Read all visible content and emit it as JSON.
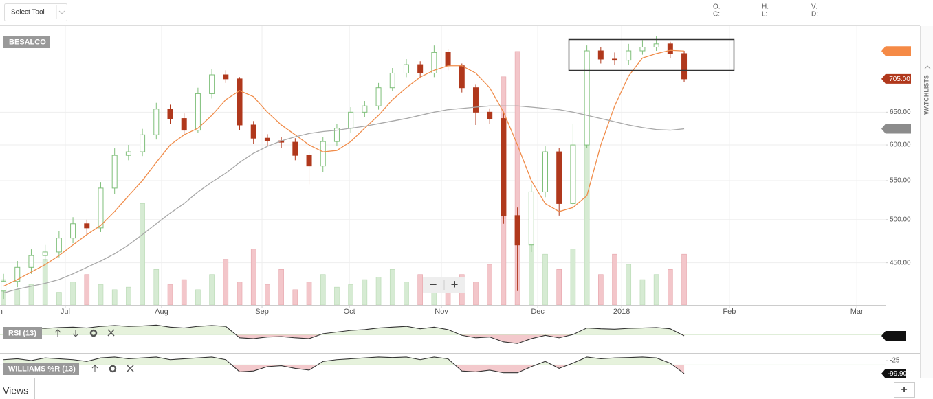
{
  "toolbar": {
    "select_tool": "Select Tool",
    "ohlc_labels": [
      "O:",
      "H:",
      "V:",
      "C:",
      "L:",
      "D:"
    ]
  },
  "sidebar": {
    "watchlists": "WATCHLISTS"
  },
  "footer": {
    "views": "Views",
    "add": "+"
  },
  "zoom": {
    "out": "−",
    "in": "+"
  },
  "chart_data": [
    {
      "type": "candlestick",
      "title": "BESALCO",
      "scale": "log",
      "grid": true,
      "ylim": [
        406,
        802
      ],
      "yticks": [
        {
          "value": 450,
          "label": "450.00"
        },
        {
          "value": 500,
          "label": "500.00"
        },
        {
          "value": 550,
          "label": "550.00"
        },
        {
          "value": 600,
          "label": "600.00"
        },
        {
          "value": 650,
          "label": "650.00"
        }
      ],
      "xlim": [
        -0.25,
        63.5
      ],
      "xticks": [
        {
          "value": -0.5,
          "label": "Jun"
        },
        {
          "value": 4.45,
          "label": "Jul"
        },
        {
          "value": 11.38,
          "label": "Aug"
        },
        {
          "value": 18.61,
          "label": "Sep"
        },
        {
          "value": 24.9,
          "label": "Oct"
        },
        {
          "value": 31.53,
          "label": "Nov"
        },
        {
          "value": 38.46,
          "label": "Dec"
        },
        {
          "value": 44.5,
          "label": "2018"
        },
        {
          "value": 52.26,
          "label": "Feb"
        },
        {
          "value": 61.43,
          "label": "Mar"
        }
      ],
      "open": [
        420,
        430,
        445,
        458,
        462,
        478,
        495,
        490,
        540,
        585,
        590,
        615,
        655,
        640,
        622,
        680,
        712,
        705,
        630,
        610,
        606,
        604,
        585,
        570,
        605,
        625,
        650,
        660,
        690,
        715,
        730,
        715,
        752,
        728,
        690,
        650,
        640,
        505,
        470,
        535,
        590,
        520,
        600,
        755,
        740,
        738,
        755,
        762,
        768,
        750
      ],
      "high": [
        438,
        452,
        465,
        470,
        486,
        503,
        500,
        548,
        595,
        600,
        624,
        665,
        662,
        648,
        690,
        722,
        720,
        708,
        636,
        616,
        612,
        610,
        590,
        612,
        632,
        658,
        668,
        698,
        724,
        740,
        736,
        765,
        758,
        732,
        695,
        656,
        648,
        515,
        545,
        598,
        596,
        632,
        765,
        762,
        752,
        768,
        775,
        782,
        772,
        755
      ],
      "low": [
        412,
        424,
        438,
        452,
        456,
        472,
        482,
        485,
        532,
        578,
        584,
        608,
        632,
        615,
        618,
        672,
        698,
        622,
        602,
        598,
        596,
        578,
        545,
        562,
        598,
        618,
        642,
        654,
        684,
        708,
        706,
        708,
        720,
        682,
        630,
        632,
        495,
        420,
        462,
        528,
        505,
        512,
        595,
        732,
        730,
        730,
        748,
        755,
        742,
        700
      ],
      "close": [
        430,
        445,
        458,
        462,
        478,
        495,
        490,
        540,
        585,
        590,
        615,
        655,
        640,
        622,
        680,
        712,
        705,
        630,
        610,
        606,
        604,
        585,
        570,
        605,
        625,
        650,
        660,
        690,
        715,
        730,
        715,
        752,
        728,
        690,
        650,
        640,
        505,
        470,
        535,
        590,
        520,
        600,
        755,
        740,
        738,
        755,
        762,
        768,
        750,
        705
      ],
      "up_color": "#7fbf7a",
      "down_color": "#b0381c",
      "volume": {
        "ylim": [
          0,
          110
        ],
        "up_color": "#d6ebd3",
        "down_color": "#f3c6ca",
        "values": [
          10,
          6,
          8,
          18,
          5,
          9,
          12,
          8,
          6,
          7,
          40,
          14,
          8,
          10,
          6,
          12,
          18,
          9,
          22,
          8,
          14,
          6,
          9,
          12,
          7,
          8,
          10,
          11,
          14,
          9,
          12,
          8,
          10,
          12,
          9,
          16,
          90,
          100,
          30,
          20,
          14,
          22,
          100,
          12,
          20,
          16,
          10,
          12,
          14,
          20
        ]
      },
      "series": [
        {
          "color": "#f08c4a",
          "values": [
            425,
            432,
            440,
            448,
            458,
            470,
            482,
            493,
            510,
            530,
            550,
            575,
            600,
            615,
            625,
            645,
            670,
            685,
            675,
            650,
            630,
            615,
            600,
            590,
            592,
            605,
            625,
            645,
            670,
            690,
            708,
            720,
            728,
            728,
            715,
            690,
            650,
            600,
            550,
            520,
            510,
            515,
            530,
            600,
            660,
            710,
            742,
            750,
            756,
            754.75
          ]
        },
        {
          "color": "#a8a8a8",
          "values": [
            418,
            422,
            425,
            428,
            432,
            438,
            445,
            452,
            460,
            470,
            482,
            495,
            508,
            520,
            535,
            548,
            560,
            575,
            588,
            598,
            606,
            612,
            617,
            620,
            622,
            625,
            628,
            632,
            636,
            640,
            645,
            650,
            654,
            656,
            658,
            660,
            660,
            660,
            658,
            656,
            654,
            650,
            645,
            640,
            635,
            630,
            626,
            623,
            622,
            624.13
          ]
        }
      ],
      "price_tags": [
        {
          "value": 754.75,
          "color": "#f58a46"
        },
        {
          "value": 705,
          "label": "705.00",
          "color": "#b0381c"
        },
        {
          "value": 624.13,
          "color": "#8c8c8c"
        }
      ]
    },
    {
      "type": "line",
      "title": "RSI (13)",
      "color": "#333333",
      "ylim": [
        20,
        92
      ],
      "midline": 50,
      "above_color": "#e6f2dc",
      "below_color": "#f3c9cc",
      "values": [
        62,
        64,
        66,
        65,
        67,
        68,
        66,
        70,
        72,
        70,
        71,
        73,
        68,
        66,
        70,
        72,
        70,
        42,
        40,
        44,
        45,
        42,
        40,
        52,
        56,
        60,
        62,
        66,
        68,
        70,
        64,
        68,
        62,
        48,
        42,
        44,
        32,
        28,
        40,
        48,
        42,
        50,
        66,
        64,
        63,
        65,
        66,
        67,
        64,
        46.88
      ],
      "tag": {
        "value": 46.88
      }
    },
    {
      "type": "line",
      "title": "WILLIAMS %R (13)",
      "color": "#333333",
      "ylim": [
        -115.8,
        14.5
      ],
      "yticks": [
        -25
      ],
      "midline": -50,
      "above_color": "#e6f2dc",
      "below_color": "#f3c9cc",
      "values": [
        -20,
        -15,
        -25,
        -10,
        -15,
        -20,
        -30,
        -10,
        -5,
        -15,
        -10,
        -5,
        -20,
        -15,
        -10,
        -5,
        -20,
        -90,
        -85,
        -60,
        -55,
        -70,
        -80,
        -30,
        -20,
        -15,
        -10,
        -5,
        -8,
        -5,
        -20,
        -5,
        -15,
        -85,
        -90,
        -80,
        -95,
        -95,
        -60,
        -30,
        -70,
        -40,
        -5,
        -15,
        -10,
        -8,
        -5,
        -10,
        -40,
        -99.9
      ],
      "tag": {
        "value": -99.9,
        "label": "-99.90"
      }
    }
  ]
}
